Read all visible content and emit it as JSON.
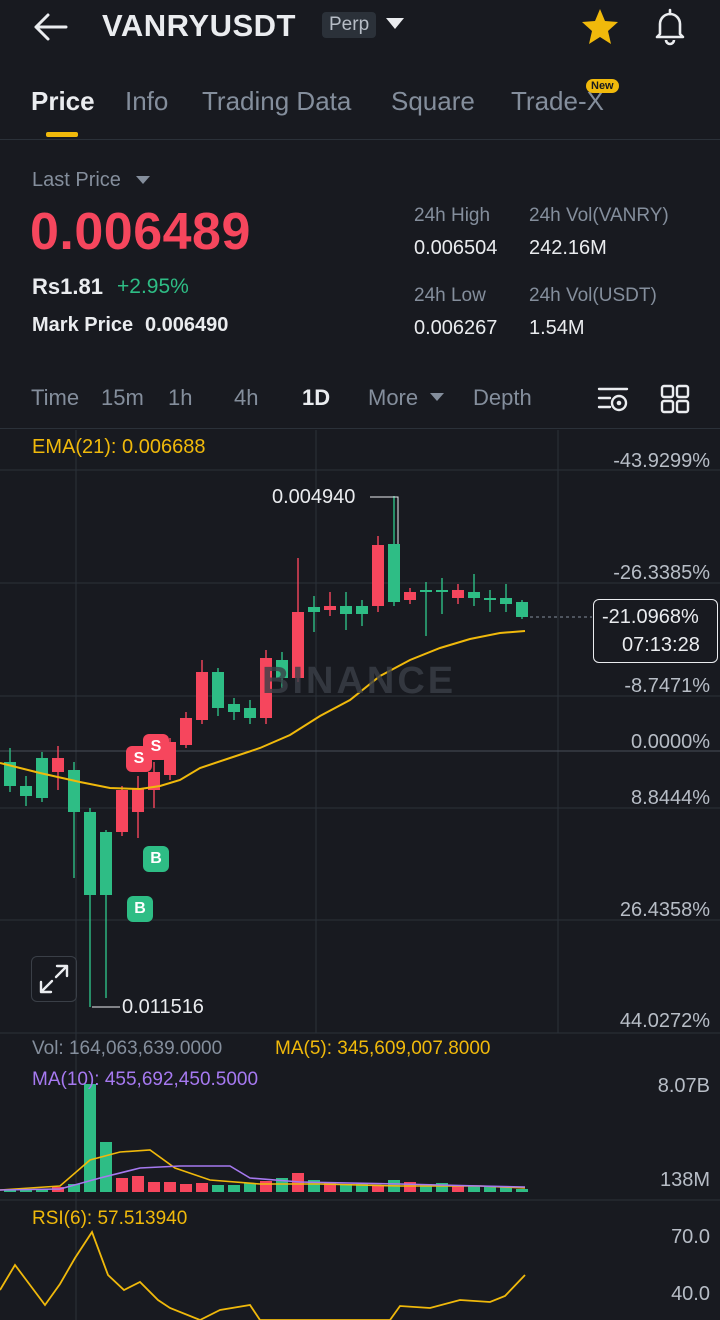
{
  "header": {
    "symbol": "VANRYUSDT",
    "contract_type": "Perp",
    "icons": [
      "back-arrow-icon",
      "dropdown-caret-icon",
      "star-icon",
      "bell-icon"
    ]
  },
  "tabs": [
    {
      "label": "Price",
      "active": true
    },
    {
      "label": "Info"
    },
    {
      "label": "Trading Data"
    },
    {
      "label": "Square"
    },
    {
      "label": "Trade-X",
      "badge": "New"
    }
  ],
  "price": {
    "last_price_label": "Last Price",
    "last_price": "0.006489",
    "fiat": "Rs1.81",
    "change": "+2.95%",
    "mark_label": "Mark Price",
    "mark_value": "0.006490"
  },
  "stats": {
    "high_label": "24h High",
    "high_value": "0.006504",
    "vol_base_label": "24h Vol(VANRY)",
    "vol_base_value": "242.16M",
    "low_label": "24h Low",
    "low_value": "0.006267",
    "vol_quote_label": "24h Vol(USDT)",
    "vol_quote_value": "1.54M"
  },
  "timeframes": {
    "items": [
      "Time",
      "15m",
      "1h",
      "4h",
      "1D",
      "More",
      "Depth"
    ],
    "active": "1D"
  },
  "chart": {
    "ema_label": "EMA(21): 0.006688",
    "pct_ticks": [
      "-43.9299%",
      "-26.3385%",
      "-8.7471%",
      "0.0000%",
      "8.8444%",
      "26.4358%",
      "44.0272%"
    ],
    "current_pct": "-21.0968%",
    "countdown": "07:13:28",
    "high_annotation": "0.004940",
    "low_annotation": "0.011516",
    "watermark": "BINANCE",
    "markers": [
      "S",
      "S",
      "B",
      "B"
    ],
    "colors": {
      "up": "#2ebd85",
      "down": "#f6465d",
      "ema": "#f0b90b"
    }
  },
  "volume": {
    "vol_text": "Vol: 164,063,639.0000",
    "ma5_text": "MA(5): 345,609,007.8000",
    "ma10_text": "MA(10): 455,692,450.5000",
    "axis_top": "8.07B",
    "axis_bottom": "138M"
  },
  "rsi": {
    "label": "RSI(6): 57.513940",
    "axis_top": "70.0",
    "axis_bottom": "40.0"
  }
}
